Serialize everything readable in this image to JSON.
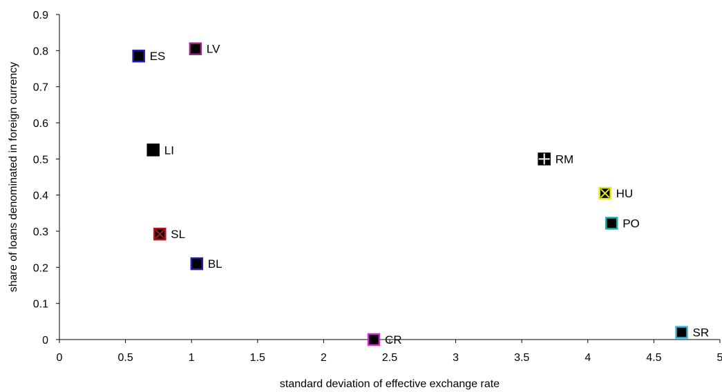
{
  "chart_data": {
    "type": "scatter",
    "title": "",
    "xlabel": "standard deviation of effective exchange rate",
    "ylabel": "share of loans denominated in foreign currency",
    "xlim": [
      0,
      5
    ],
    "ylim": [
      0,
      0.9
    ],
    "x_ticks": [
      "0",
      "0.5",
      "1",
      "1.5",
      "2",
      "2.5",
      "3",
      "3.5",
      "4",
      "4.5",
      "5"
    ],
    "y_ticks": [
      "0",
      "0.1",
      "0.2",
      "0.3",
      "0.4",
      "0.5",
      "0.6",
      "0.7",
      "0.8",
      "0.9"
    ],
    "grid": false,
    "legend": false,
    "points": [
      {
        "label": "ES",
        "x": 0.6,
        "y": 0.785,
        "marker": "square",
        "fill": "#000000",
        "edge": "#1f1fb4"
      },
      {
        "label": "LV",
        "x": 1.03,
        "y": 0.805,
        "marker": "square",
        "fill": "#000000",
        "edge": "#a0208c"
      },
      {
        "label": "LI",
        "x": 0.71,
        "y": 0.525,
        "marker": "square",
        "fill": "#000000",
        "edge": "#000000"
      },
      {
        "label": "SL",
        "x": 0.76,
        "y": 0.292,
        "marker": "x-square",
        "fill": "#000000",
        "edge": "#b01818"
      },
      {
        "label": "BL",
        "x": 1.04,
        "y": 0.21,
        "marker": "square",
        "fill": "#000000",
        "edge": "#1f1fb4"
      },
      {
        "label": "CR",
        "x": 2.38,
        "y": 0.0,
        "marker": "square",
        "fill": "#000000",
        "edge": "#d52ad5"
      },
      {
        "label": "RM",
        "x": 3.67,
        "y": 0.5,
        "marker": "plus-square",
        "fill": "#000000",
        "edge": "#000000"
      },
      {
        "label": "HU",
        "x": 4.13,
        "y": 0.405,
        "marker": "x-square",
        "fill": "#000000",
        "edge": "#e6e62a"
      },
      {
        "label": "PO",
        "x": 4.18,
        "y": 0.322,
        "marker": "square",
        "fill": "#000000",
        "edge": "#2aa8a8"
      },
      {
        "label": "SR",
        "x": 4.71,
        "y": 0.02,
        "marker": "square",
        "fill": "#000000",
        "edge": "#35b8d8"
      }
    ]
  }
}
